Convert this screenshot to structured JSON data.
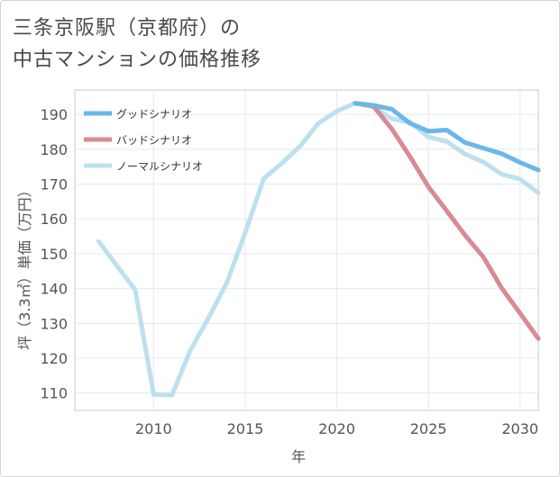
{
  "title": {
    "line1": "三条京阪駅（京都府）の",
    "line2": "中古マンションの価格推移"
  },
  "chart_data": {
    "type": "line",
    "xlabel": "年",
    "ylabel": "坪（3.3㎡）単価（万円）",
    "xlim": [
      2005.7,
      2031
    ],
    "ylim": [
      105,
      197
    ],
    "x_ticks": [
      2010,
      2015,
      2020,
      2025,
      2030
    ],
    "y_ticks": [
      110,
      120,
      130,
      140,
      150,
      160,
      170,
      180,
      190
    ],
    "legend_position": "top-left",
    "grid": true,
    "series": [
      {
        "name": "グッドシナリオ",
        "color": "#6ab7ea",
        "x": [
          2021,
          2022,
          2023,
          2024,
          2025,
          2026,
          2027,
          2028,
          2029,
          2030,
          2031
        ],
        "y": [
          193.2,
          192.6,
          191.5,
          187.4,
          185.2,
          185.5,
          181.9,
          180.3,
          178.7,
          176.2,
          174.0
        ]
      },
      {
        "name": "バッドシナリオ",
        "color": "#d98a92",
        "x": [
          2021,
          2022,
          2023,
          2024,
          2025,
          2026,
          2027,
          2028,
          2029,
          2030,
          2031
        ],
        "y": [
          193.2,
          192.3,
          185.8,
          177.8,
          169.2,
          162.3,
          155.3,
          149.0,
          140.1,
          132.9,
          125.6
        ]
      },
      {
        "name": "ノーマルシナリオ",
        "color": "#bde0ee",
        "x": [
          2007,
          2008,
          2009,
          2010,
          2011,
          2012,
          2013,
          2014,
          2015,
          2016,
          2017,
          2018,
          2019,
          2020,
          2021,
          2022,
          2023,
          2024,
          2025,
          2026,
          2027,
          2028,
          2029,
          2030,
          2031
        ],
        "y": [
          153.5,
          146.5,
          139.6,
          109.6,
          109.4,
          122.2,
          131.6,
          141.7,
          156.0,
          171.5,
          176.0,
          180.9,
          187.5,
          190.9,
          193.2,
          192.2,
          188.7,
          187.7,
          183.5,
          182.2,
          178.6,
          176.3,
          172.8,
          171.4,
          167.5
        ]
      }
    ]
  }
}
